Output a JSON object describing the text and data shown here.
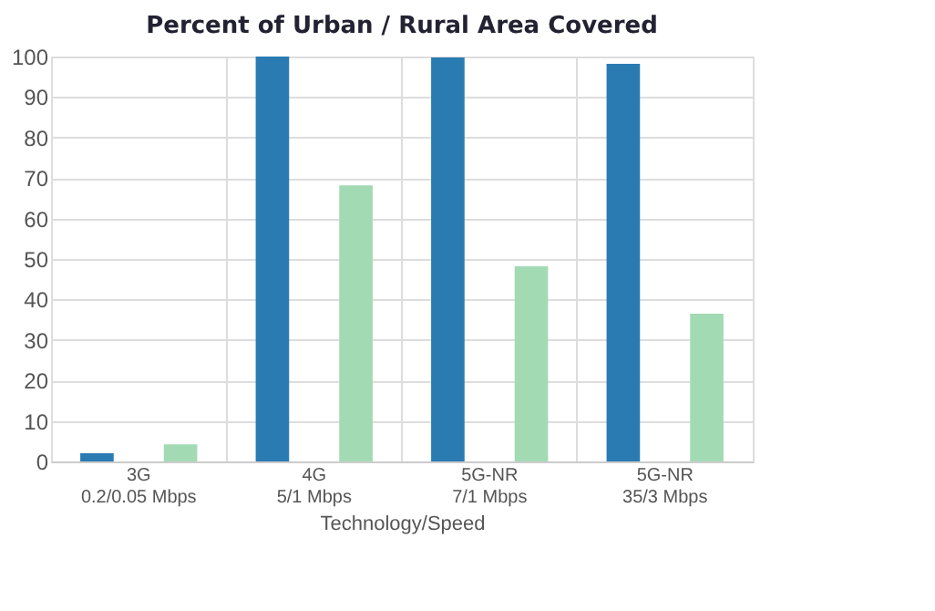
{
  "chart_data": {
    "type": "bar",
    "title": "Percent of Urban / Rural Area Covered",
    "xlabel": "Technology/Speed",
    "categories": [
      "3G\n0.2/0.05 Mbps",
      "4G\n5/1 Mbps",
      "5G-NR\n7/1 Mbps",
      "5G-NR\n35/3 Mbps"
    ],
    "series": [
      {
        "color": "#2b7bb3",
        "values": [
          2,
          100,
          99.8,
          98.2
        ]
      },
      {
        "color": "#a2dab4",
        "values": [
          4.2,
          68.2,
          48.2,
          36.5
        ]
      }
    ],
    "ylim": [
      0,
      100
    ],
    "yticks": [
      0,
      10,
      20,
      30,
      40,
      50,
      60,
      70,
      80,
      90,
      100
    ],
    "grid": true,
    "legend": false
  }
}
